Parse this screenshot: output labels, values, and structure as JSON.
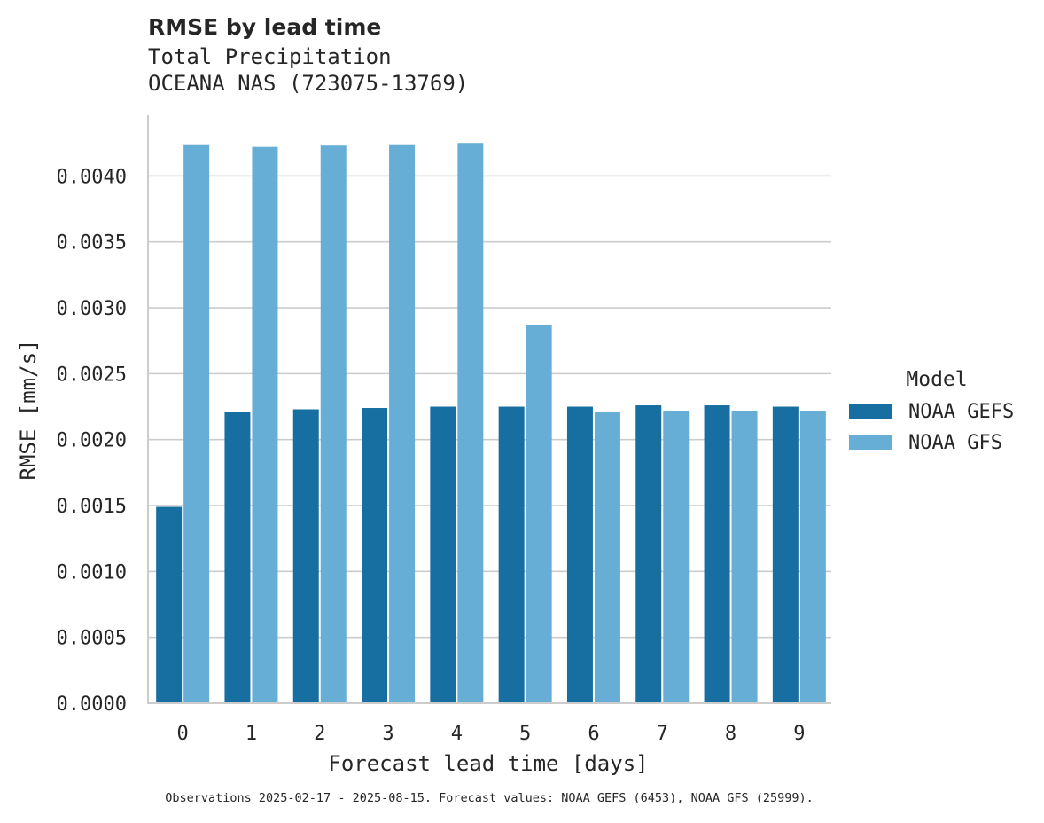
{
  "chart_data": {
    "type": "bar",
    "title": "RMSE by lead time",
    "subtitle": [
      "Total Precipitation",
      "OCEANA NAS (723075-13769)"
    ],
    "xlabel": "Forecast lead time [days]",
    "ylabel": "RMSE [mm/s]",
    "categories": [
      "0",
      "1",
      "2",
      "3",
      "4",
      "5",
      "6",
      "7",
      "8",
      "9"
    ],
    "ylim": [
      0,
      0.00446
    ],
    "yticks": [
      "0.0000",
      "0.0005",
      "0.0010",
      "0.0015",
      "0.0020",
      "0.0025",
      "0.0030",
      "0.0035",
      "0.0040"
    ],
    "grid": "horizontal",
    "legend": {
      "title": "Model",
      "placement": "right"
    },
    "series": [
      {
        "name": "NOAA GEFS",
        "color": "#176ea0",
        "values": [
          0.00149,
          0.00221,
          0.00223,
          0.00224,
          0.00225,
          0.00225,
          0.00225,
          0.00226,
          0.00226,
          0.00225
        ]
      },
      {
        "name": "NOAA GFS",
        "color": "#67aed7",
        "values": [
          0.00424,
          0.00422,
          0.00423,
          0.00424,
          0.00425,
          0.00287,
          0.00221,
          0.00222,
          0.00222,
          0.00222
        ]
      }
    ],
    "footnote": "Observations 2025-02-17 - 2025-08-15. Forecast values: NOAA GEFS (6453), NOAA GFS (25999)."
  }
}
